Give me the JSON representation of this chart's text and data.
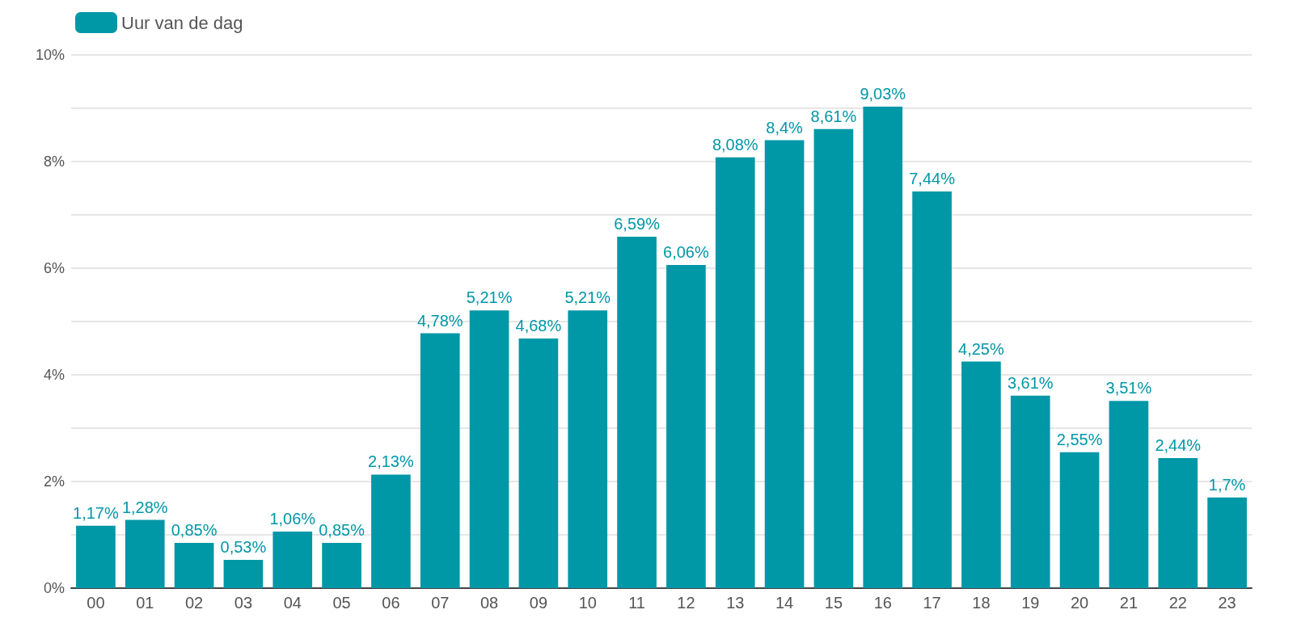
{
  "chart_data": {
    "type": "bar",
    "categories": [
      "00",
      "01",
      "02",
      "03",
      "04",
      "05",
      "06",
      "07",
      "08",
      "09",
      "10",
      "11",
      "12",
      "13",
      "14",
      "15",
      "16",
      "17",
      "18",
      "19",
      "20",
      "21",
      "22",
      "23"
    ],
    "series": [
      {
        "name": "Uur van de dag",
        "color": "#0097a7",
        "values": [
          1.17,
          1.28,
          0.85,
          0.53,
          1.06,
          0.85,
          2.13,
          4.78,
          5.21,
          4.68,
          5.21,
          6.59,
          6.06,
          8.08,
          8.4,
          8.61,
          9.03,
          7.44,
          4.25,
          3.61,
          2.55,
          3.51,
          2.44,
          1.7
        ],
        "value_labels": [
          "1,17%",
          "1,28%",
          "0,85%",
          "0,53%",
          "1,06%",
          "0,85%",
          "2,13%",
          "4,78%",
          "5,21%",
          "4,68%",
          "5,21%",
          "6,59%",
          "6,06%",
          "8,08%",
          "8,4%",
          "8,61%",
          "9,03%",
          "7,44%",
          "4,25%",
          "3,61%",
          "2,55%",
          "3,51%",
          "2,44%",
          "1,7%"
        ]
      }
    ],
    "ylim": [
      0,
      10
    ],
    "yticks": [
      {
        "value": 0,
        "label": "0%"
      },
      {
        "value": 1,
        "label": null
      },
      {
        "value": 2,
        "label": "2%"
      },
      {
        "value": 3,
        "label": null
      },
      {
        "value": 4,
        "label": "4%"
      },
      {
        "value": 5,
        "label": null
      },
      {
        "value": 6,
        "label": "6%"
      },
      {
        "value": 7,
        "label": null
      },
      {
        "value": 8,
        "label": "8%"
      },
      {
        "value": 9,
        "label": null
      },
      {
        "value": 10,
        "label": "10%"
      }
    ],
    "grid": true,
    "legend": "top left"
  }
}
